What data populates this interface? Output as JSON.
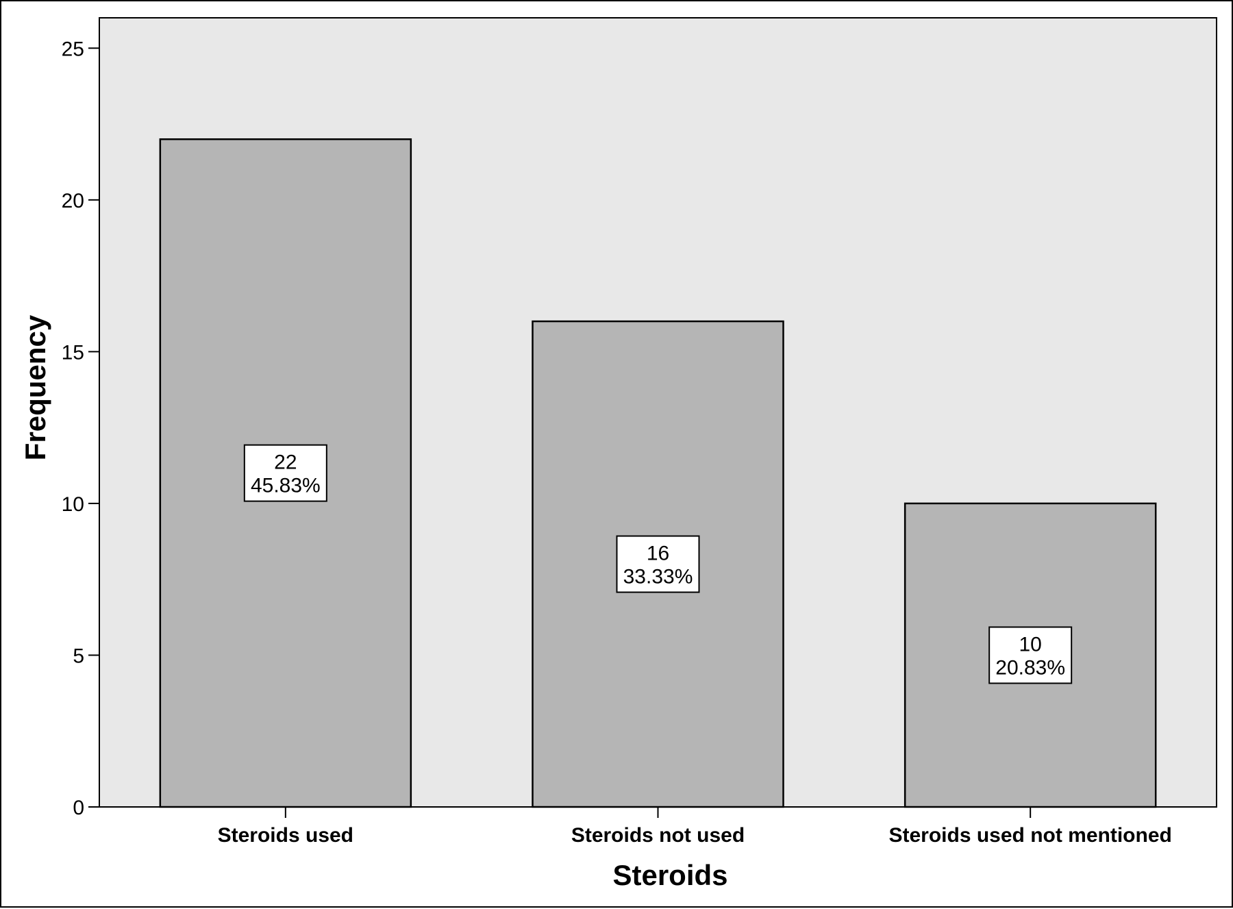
{
  "chart_data": {
    "type": "bar",
    "title": "",
    "xlabel": "Steroids",
    "ylabel": "Frequency",
    "categories": [
      "Steroids used",
      "Steroids not used",
      "Steroids used not mentioned"
    ],
    "values": [
      22,
      16,
      10
    ],
    "percent_labels": [
      "45.83%",
      "33.33%",
      "20.83%"
    ],
    "value_labels": [
      "22",
      "16",
      "10"
    ],
    "ylim": [
      0,
      26
    ],
    "yticks": [
      0,
      5,
      10,
      15,
      20,
      25
    ],
    "grid": false,
    "legend": "none",
    "colors": {
      "plot_background": "#e8e8e8",
      "bar_fill": "#b5b5b5",
      "bar_stroke": "#000000",
      "label_box": "#ffffff"
    }
  }
}
